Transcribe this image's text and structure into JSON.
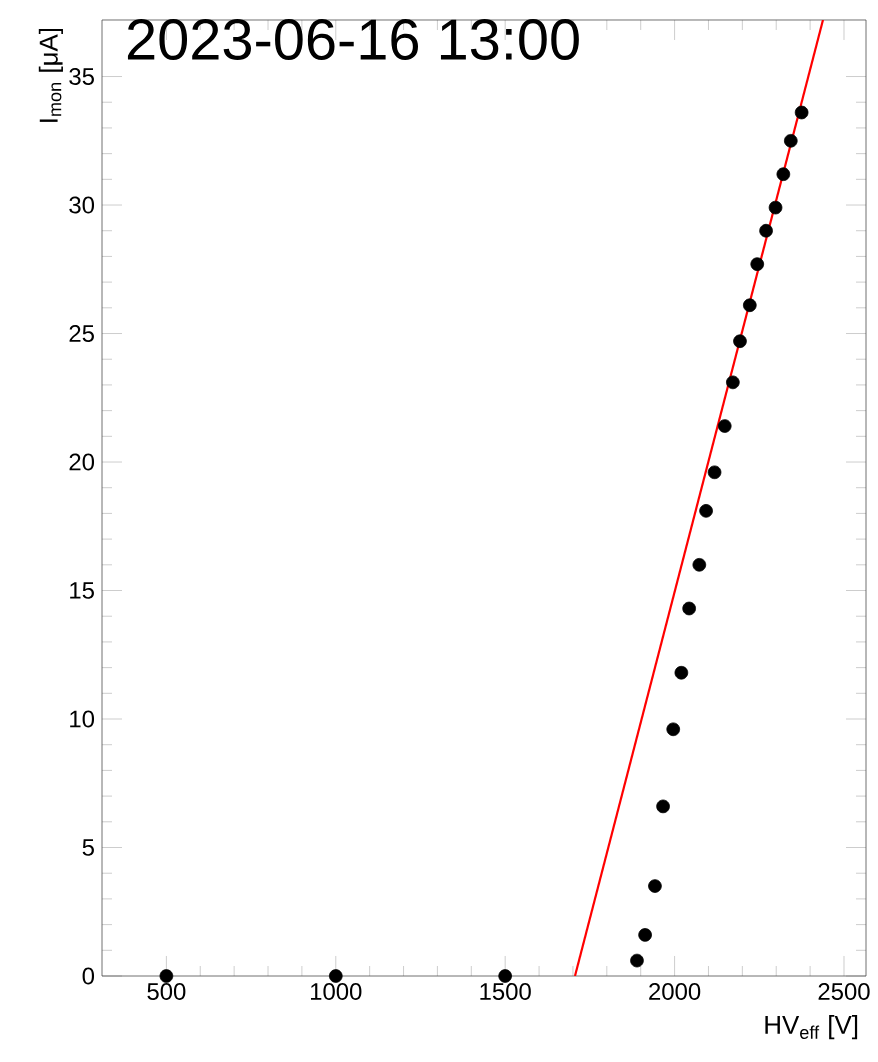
{
  "chart_data": {
    "type": "scatter",
    "title": "2023-06-16 13:00",
    "xlabel": "HV$_{eff}$ [V]",
    "ylabel": "I$_{mon}$ [μA]",
    "xlim": [
      310,
      2565
    ],
    "ylim": [
      0,
      37.2
    ],
    "xticks": [
      500,
      1000,
      1500,
      2000,
      2500
    ],
    "yticks": [
      0,
      5,
      10,
      15,
      20,
      25,
      30,
      35
    ],
    "series": [
      {
        "color": "#000000",
        "x": [
          500,
          1000,
          1500,
          1889,
          1913,
          1942,
          1966,
          1996,
          2020,
          2043,
          2073,
          2093,
          2118,
          2148,
          2172,
          2193,
          2222,
          2244,
          2270,
          2298,
          2321,
          2343,
          2375
        ],
        "values": [
          0,
          0,
          0,
          0.6,
          1.6,
          3.5,
          6.6,
          9.6,
          11.8,
          14.3,
          16.0,
          18.1,
          19.6,
          21.4,
          23.1,
          24.7,
          26.1,
          27.7,
          29.0,
          29.9,
          31.2,
          32.5,
          33.6
        ]
      },
      {
        "type": "line",
        "color": "#ff0000",
        "line_style": "solid",
        "x": [
          1706,
          2438
        ],
        "values": [
          0,
          37.2
        ]
      }
    ]
  }
}
